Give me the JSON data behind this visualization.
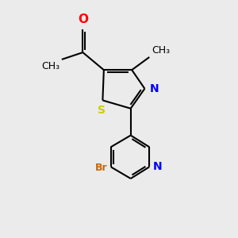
{
  "background_color": "#ebebeb",
  "bond_color": "#000000",
  "atom_colors": {
    "O": "#ff0000",
    "N": "#0000ff",
    "S": "#cccc00",
    "Br": "#cc6600",
    "C": "#000000"
  },
  "figsize": [
    3.0,
    3.0
  ],
  "dpi": 100
}
